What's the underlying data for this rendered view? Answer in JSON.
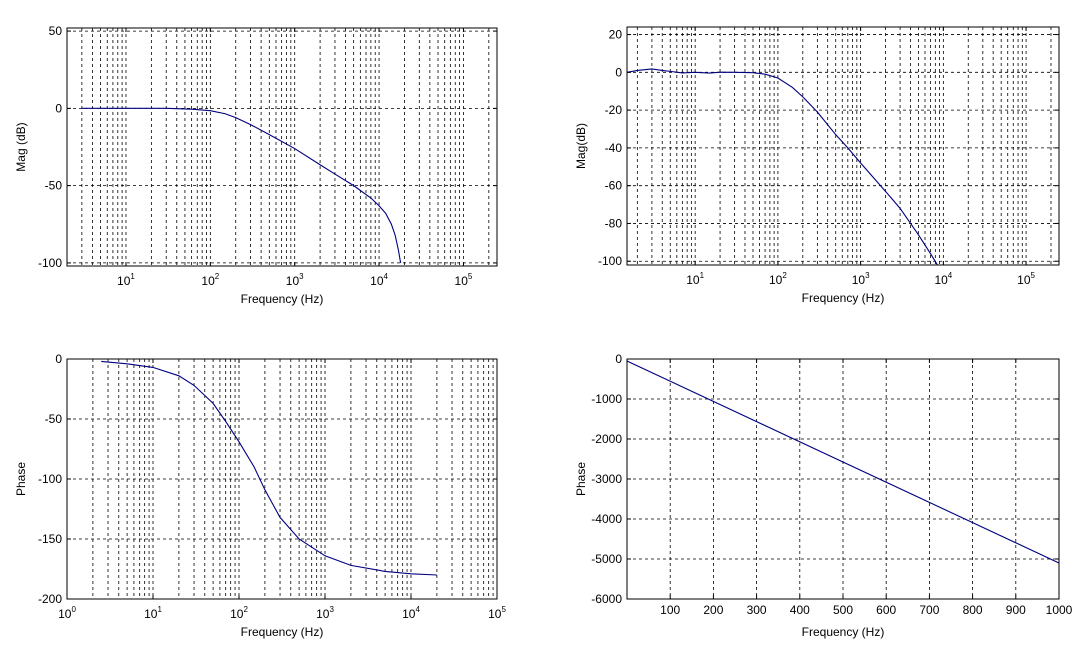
{
  "chart_data": [
    {
      "type": "line",
      "xscale": "log",
      "xlabel": "Frequency (Hz)",
      "ylabel": "Mag (dB)",
      "xlim": [
        2,
        250000
      ],
      "ylim": [
        -102,
        52
      ],
      "xticks": [
        10,
        100,
        1000,
        10000,
        100000
      ],
      "xtick_labels": [
        [
          "10",
          "1"
        ],
        [
          "10",
          "2"
        ],
        [
          "10",
          "3"
        ],
        [
          "10",
          "4"
        ],
        [
          "10",
          "5"
        ]
      ],
      "yticks": [
        -100,
        -50,
        0,
        50
      ],
      "ytick_labels": [
        "-100",
        "-50",
        "0",
        "50"
      ],
      "grid": true,
      "series": [
        {
          "color": "#000080",
          "x": [
            3,
            10,
            30,
            60,
            100,
            150,
            200,
            300,
            500,
            1000,
            2000,
            3000,
            5000,
            8000,
            10000,
            12000,
            14000,
            15500,
            17000,
            18000
          ],
          "y": [
            0,
            0,
            0,
            -0.5,
            -1.5,
            -3.5,
            -6,
            -10.5,
            -17,
            -26,
            -36.5,
            -42.5,
            -50,
            -58,
            -63,
            -68,
            -75,
            -82,
            -92,
            -100
          ]
        }
      ]
    },
    {
      "type": "line",
      "xscale": "log",
      "xlabel": "Frequency (Hz)",
      "ylabel": "Mag(dB)",
      "xlim": [
        1.5,
        250000
      ],
      "ylim": [
        -102,
        24
      ],
      "xticks": [
        10,
        100,
        1000,
        10000,
        100000
      ],
      "xtick_labels": [
        [
          "10",
          "1"
        ],
        [
          "10",
          "2"
        ],
        [
          "10",
          "3"
        ],
        [
          "10",
          "4"
        ],
        [
          "10",
          "5"
        ]
      ],
      "yticks": [
        -100,
        -80,
        -60,
        -40,
        -20,
        0,
        20
      ],
      "ytick_labels": [
        "-100",
        "-80",
        "-60",
        "-40",
        "-20",
        "0",
        "20"
      ],
      "grid": true,
      "series": [
        {
          "color": "#000080",
          "x": [
            1.5,
            2,
            3,
            4,
            5,
            7,
            10,
            15,
            20,
            30,
            50,
            70,
            100,
            150,
            200,
            300,
            500,
            700,
            1000,
            2000,
            3000,
            5000,
            7000,
            8500
          ],
          "y": [
            0,
            1,
            1.8,
            1,
            0.5,
            -0.3,
            0,
            -0.4,
            0.1,
            0,
            -0.2,
            -1,
            -3,
            -8,
            -13,
            -21,
            -33,
            -40,
            -48,
            -63,
            -72,
            -86,
            -96,
            -102
          ]
        }
      ]
    },
    {
      "type": "line",
      "xscale": "log",
      "xlabel": "Frequency (Hz)",
      "ylabel": "Phase",
      "xlim": [
        1,
        100000
      ],
      "ylim": [
        -200,
        0
      ],
      "xticks": [
        1,
        10,
        100,
        1000,
        10000,
        100000
      ],
      "xtick_labels": [
        [
          "10",
          "0"
        ],
        [
          "10",
          "1"
        ],
        [
          "10",
          "2"
        ],
        [
          "10",
          "3"
        ],
        [
          "10",
          "4"
        ],
        [
          "10",
          "5"
        ]
      ],
      "yticks": [
        -200,
        -150,
        -100,
        -50,
        0
      ],
      "ytick_labels": [
        "-200",
        "-150",
        "-100",
        "-50",
        "0"
      ],
      "grid": true,
      "series": [
        {
          "color": "#000080",
          "x": [
            2.5,
            5,
            10,
            20,
            30,
            50,
            70,
            100,
            150,
            200,
            300,
            500,
            1000,
            2000,
            5000,
            10000,
            20000
          ],
          "y": [
            -2,
            -4,
            -7,
            -14,
            -22,
            -37,
            -52,
            -69,
            -90,
            -109,
            -132,
            -150,
            -164,
            -172,
            -177,
            -179,
            -180
          ]
        }
      ]
    },
    {
      "type": "line",
      "xscale": "linear",
      "xlabel": "Frequency (Hz)",
      "ylabel": "Phase",
      "xlim": [
        0,
        1000
      ],
      "ylim": [
        -6000,
        0
      ],
      "xticks": [
        100,
        200,
        300,
        400,
        500,
        600,
        700,
        800,
        900,
        1000
      ],
      "xtick_labels": [
        "100",
        "200",
        "300",
        "400",
        "500",
        "600",
        "700",
        "800",
        "900",
        "1000"
      ],
      "yticks": [
        -6000,
        -5000,
        -4000,
        -3000,
        -2000,
        -1000,
        0
      ],
      "ytick_labels": [
        "-6000",
        "-5000",
        "-4000",
        "-3000",
        "-2000",
        "-1000",
        "0"
      ],
      "grid": true,
      "series": [
        {
          "color": "#000080",
          "x": [
            0,
            1000
          ],
          "y": [
            -50,
            -5100
          ]
        }
      ]
    }
  ]
}
